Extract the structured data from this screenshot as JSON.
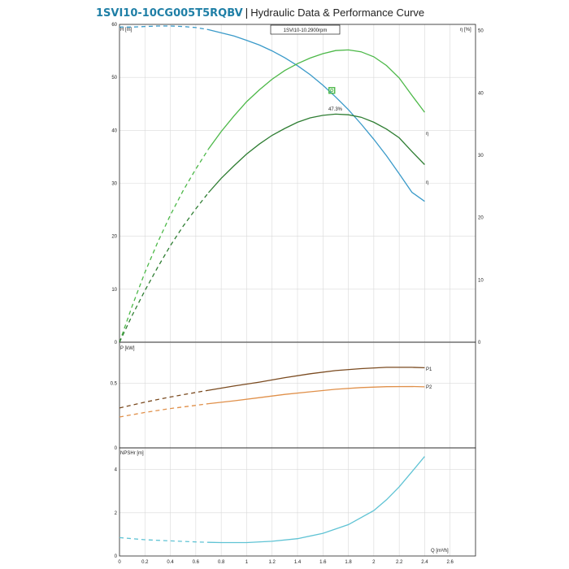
{
  "header": {
    "code": "1SVI10-10CG005T5RQBV",
    "separator": "|",
    "subtitle": "Hydraulic Data & Performance Curve"
  },
  "colors": {
    "head": "#3a9ac9",
    "eta_dark": "#2e7d32",
    "eta_light": "#4cb848",
    "p1": "#7a4a1f",
    "p2": "#e0904a",
    "npsh": "#5fc3d4",
    "frame": "#222222",
    "grid": "#d9d9d9"
  },
  "chart_data": [
    {
      "type": "line",
      "id": "head-efficiency",
      "speed_label": "1SVI10-10.2900rpm",
      "ylabel": "H [m]",
      "y2label": "η [%]",
      "xlim": [
        0,
        2.8
      ],
      "ylim": [
        0,
        60
      ],
      "y2lim": [
        0,
        51
      ],
      "yticks": [
        0,
        10,
        20,
        30,
        40,
        50,
        60
      ],
      "y2ticks": [
        0,
        10,
        20,
        30,
        40,
        50
      ],
      "grid": true,
      "series": [
        {
          "key": "head",
          "axis": "left",
          "x": [
            0,
            0.1,
            0.2,
            0.3,
            0.4,
            0.5,
            0.6,
            0.7,
            0.8,
            0.9,
            1.0,
            1.1,
            1.2,
            1.3,
            1.4,
            1.5,
            1.6,
            1.7,
            1.8,
            1.9,
            2.0,
            2.1,
            2.2,
            2.3,
            2.4
          ],
          "values": [
            59.5,
            59.5,
            59.6,
            59.7,
            59.7,
            59.6,
            59.4,
            59.0,
            58.4,
            57.8,
            57.0,
            56.1,
            55.0,
            53.7,
            52.2,
            50.5,
            48.5,
            46.3,
            43.9,
            41.2,
            38.3,
            35.2,
            31.8,
            28.3,
            26.6
          ],
          "dashed_until": 0.7
        },
        {
          "key": "eta",
          "name": "η",
          "axis": "right",
          "x": [
            0,
            0.1,
            0.2,
            0.3,
            0.4,
            0.5,
            0.6,
            0.7,
            0.8,
            0.9,
            1.0,
            1.1,
            1.2,
            1.3,
            1.4,
            1.5,
            1.6,
            1.7,
            1.8,
            1.9,
            2.0,
            2.1,
            2.2,
            2.3,
            2.4
          ],
          "values": [
            0,
            5.8,
            11.2,
            16.0,
            20.4,
            24.3,
            27.8,
            31.0,
            33.8,
            36.3,
            38.6,
            40.5,
            42.2,
            43.6,
            44.7,
            45.6,
            46.3,
            46.8,
            46.9,
            46.6,
            45.8,
            44.4,
            42.4,
            39.6,
            36.9
          ],
          "dashed_until": 0.7
        },
        {
          "key": "eta_p",
          "name": "η",
          "axis": "right",
          "x": [
            0,
            0.1,
            0.2,
            0.3,
            0.4,
            0.5,
            0.6,
            0.7,
            0.8,
            0.9,
            1.0,
            1.1,
            1.2,
            1.3,
            1.4,
            1.5,
            1.6,
            1.7,
            1.8,
            1.9,
            2.0,
            2.1,
            2.2,
            2.3,
            2.4
          ],
          "values": [
            0,
            4.3,
            8.3,
            12.0,
            15.5,
            18.6,
            21.4,
            24.0,
            26.3,
            28.3,
            30.2,
            31.8,
            33.2,
            34.3,
            35.3,
            36.0,
            36.4,
            36.6,
            36.5,
            36.1,
            35.3,
            34.2,
            32.8,
            30.6,
            28.5
          ],
          "dashed_until": 0.7
        }
      ],
      "marker": {
        "x": 1.67,
        "y2": 40.4,
        "label": "47.3%"
      }
    },
    {
      "type": "line",
      "id": "power",
      "ylabel": "P [kW]",
      "xlim": [
        0,
        2.8
      ],
      "ylim": [
        0,
        0.82
      ],
      "yticks": [
        0,
        0.5
      ],
      "ytick_labels": [
        "0",
        "0.5"
      ],
      "grid": true,
      "series": [
        {
          "key": "p1",
          "name": "P1",
          "x": [
            0,
            0.2,
            0.4,
            0.6,
            0.7,
            0.9,
            1.1,
            1.3,
            1.5,
            1.7,
            1.9,
            2.1,
            2.3,
            2.4
          ],
          "values": [
            0.31,
            0.355,
            0.395,
            0.43,
            0.447,
            0.48,
            0.51,
            0.545,
            0.575,
            0.6,
            0.615,
            0.625,
            0.625,
            0.622
          ],
          "dashed_until": 0.7
        },
        {
          "key": "p2",
          "name": "P2",
          "x": [
            0,
            0.2,
            0.4,
            0.6,
            0.7,
            0.9,
            1.1,
            1.3,
            1.5,
            1.7,
            1.9,
            2.1,
            2.3,
            2.4
          ],
          "values": [
            0.24,
            0.275,
            0.305,
            0.33,
            0.343,
            0.365,
            0.39,
            0.415,
            0.435,
            0.455,
            0.468,
            0.475,
            0.476,
            0.474
          ],
          "dashed_until": 0.7
        }
      ]
    },
    {
      "type": "line",
      "id": "npshr",
      "ylabel": "NPSHr [m]",
      "xlabel": "Q [m³/h]",
      "xlim": [
        0,
        2.8
      ],
      "ylim": [
        0,
        5.0
      ],
      "yticks": [
        0,
        2,
        4
      ],
      "xticks": [
        0,
        0.2,
        0.4,
        0.6,
        0.8,
        1,
        1.2,
        1.4,
        1.6,
        1.8,
        2,
        2.2,
        2.4,
        2.6
      ],
      "xtick_labels": [
        "0",
        "0.2",
        "0.4",
        "0.6",
        "0.8",
        "1",
        "1.2",
        "1.4",
        "1.6",
        "1.8",
        "2",
        "2.2",
        "2.4",
        "2.6"
      ],
      "grid": true,
      "series": [
        {
          "key": "npsh",
          "x": [
            0,
            0.2,
            0.4,
            0.6,
            0.7,
            0.8,
            1.0,
            1.2,
            1.4,
            1.6,
            1.8,
            2.0,
            2.1,
            2.2,
            2.3,
            2.4
          ],
          "values": [
            0.85,
            0.75,
            0.7,
            0.65,
            0.63,
            0.62,
            0.62,
            0.68,
            0.8,
            1.05,
            1.45,
            2.1,
            2.6,
            3.2,
            3.9,
            4.6
          ],
          "dashed_until": 0.7
        }
      ]
    }
  ]
}
